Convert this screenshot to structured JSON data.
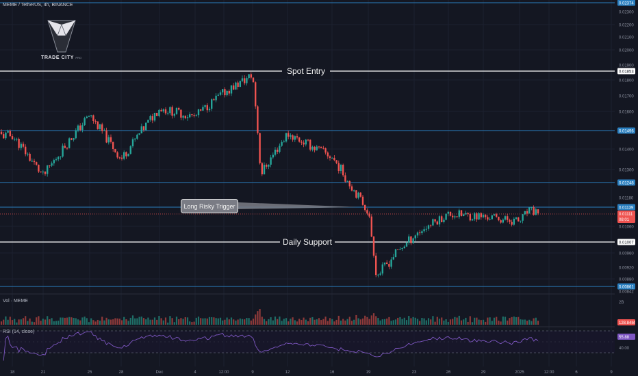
{
  "header": {
    "symbol_text": "MEME / TetherUS, 4h, BINANCE"
  },
  "logo": {
    "name": "TRADE CITY",
    "suffix": "PRO"
  },
  "annotations": {
    "spot_entry": "Spot Entry",
    "daily_support": "Daily Support",
    "long_trigger": "Long Risky Trigger"
  },
  "panes": {
    "volume": "Vol · MEME",
    "rsi": "RSI (14, close)"
  },
  "colors": {
    "background": "#141722",
    "up": "#26a69a",
    "down": "#ef5350",
    "level_line": "#2a7fc0",
    "key_line": "#ffffff",
    "rsi_line": "#7e57c2"
  },
  "chart_data": [
    {
      "type": "candlestick",
      "title": "MEME / TetherUS, 4h, BINANCE",
      "y_axis_ticks": [
        "0.02300",
        "0.02200",
        "0.02100",
        "0.02000",
        "0.01900",
        "0.01800",
        "0.01700",
        "0.01600",
        "0.01400",
        "0.01300",
        "0.01180",
        "0.01060",
        "0.00960",
        "0.00920",
        "0.00880",
        "0.00842"
      ],
      "x_axis_ticks": [
        "18",
        "21",
        "25",
        "28",
        "Dec",
        "4",
        "12:00",
        "9",
        "12",
        "16",
        "19",
        "23",
        "26",
        "29",
        "2025",
        "12:00",
        "6",
        "9"
      ],
      "horizontal_levels": [
        {
          "value": "0.02374",
          "style": "blue"
        },
        {
          "value": "0.01853",
          "style": "white",
          "label": "Spot Entry"
        },
        {
          "value": "0.01496",
          "style": "blue"
        },
        {
          "value": "0.01248",
          "style": "blue"
        },
        {
          "value": "0.01139",
          "style": "blue"
        },
        {
          "value": "0.01007",
          "style": "white",
          "label": "Daily Support"
        },
        {
          "value": "0.00861",
          "style": "blue"
        }
      ],
      "current_price": "0.01111",
      "countdown": "08:01",
      "ohlc_anchors": [
        {
          "x": "18",
          "price": 0.0147
        },
        {
          "x": "21",
          "price": 0.0127
        },
        {
          "x": "25",
          "price": 0.0158
        },
        {
          "x": "28",
          "price": 0.0135
        },
        {
          "x": "Dec",
          "price": 0.0162
        },
        {
          "x": "4",
          "price": 0.0157
        },
        {
          "x": "12:00",
          "price": 0.0172
        },
        {
          "x": "9",
          "price": 0.0183
        },
        {
          "x": "9",
          "price": 0.0128
        },
        {
          "x": "12",
          "price": 0.0148
        },
        {
          "x": "16",
          "price": 0.0136
        },
        {
          "x": "19",
          "price": 0.0112
        },
        {
          "x": "19",
          "price": 0.0089
        },
        {
          "x": "23",
          "price": 0.0103
        },
        {
          "x": "26",
          "price": 0.0111
        },
        {
          "x": "29",
          "price": 0.011
        },
        {
          "x": "2025",
          "price": 0.0108
        },
        {
          "x": "2025",
          "price": 0.0112
        }
      ]
    },
    {
      "type": "bar",
      "title": "Vol · MEME",
      "y_axis_ticks": [
        "2B"
      ],
      "last_value": "128.84M"
    },
    {
      "type": "line",
      "title": "RSI (14, close)",
      "y_axis_ticks": [
        "40.00"
      ],
      "last_value": "55.88"
    }
  ]
}
